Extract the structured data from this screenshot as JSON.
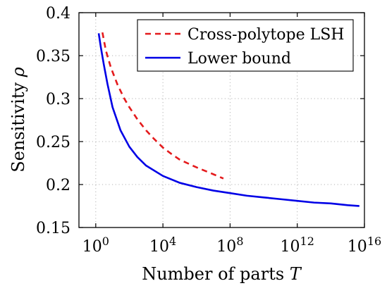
{
  "chart_data": {
    "type": "line",
    "title": "",
    "xlabel": "Number of parts T",
    "ylabel": "Sensitivity ρ",
    "x_scale": "log10",
    "xlim": [
      0.1,
      1e+16
    ],
    "ylim": [
      0.15,
      0.4
    ],
    "grid": true,
    "legend_position": "top-right",
    "x_ticks": [
      {
        "value": 1,
        "base": "10",
        "exp": "0"
      },
      {
        "value": 10000,
        "base": "10",
        "exp": "4"
      },
      {
        "value": 100000000,
        "base": "10",
        "exp": "8"
      },
      {
        "value": 1000000000000,
        "base": "10",
        "exp": "12"
      },
      {
        "value": 10000000000000000,
        "base": "10",
        "exp": "16"
      }
    ],
    "y_ticks": [
      {
        "value": 0.15,
        "label": "0.15"
      },
      {
        "value": 0.2,
        "label": "0.2"
      },
      {
        "value": 0.25,
        "label": "0.25"
      },
      {
        "value": 0.3,
        "label": "0.3"
      },
      {
        "value": 0.35,
        "label": "0.35"
      },
      {
        "value": 0.4,
        "label": "0.4"
      }
    ],
    "series": [
      {
        "name": "Cross-polytope LSH",
        "color": "#e41a1c",
        "style": "dashed",
        "x": [
          2.5,
          4,
          8,
          20,
          50,
          100,
          300,
          1000,
          3000,
          10000,
          30000,
          100000,
          1000000,
          10000000,
          40000000
        ],
        "y": [
          0.377,
          0.356,
          0.336,
          0.316,
          0.3,
          0.29,
          0.276,
          0.263,
          0.253,
          0.243,
          0.236,
          0.229,
          0.22,
          0.212,
          0.207
        ]
      },
      {
        "name": "Lower bound",
        "color": "#0000e6",
        "style": "solid",
        "x": [
          1.5,
          2,
          3,
          5,
          10,
          30,
          100,
          300,
          1000,
          10000,
          100000,
          1000000,
          10000000,
          100000000,
          1000000000,
          10000000000.0,
          100000000000.0,
          1000000000000.0,
          10000000000000.0,
          100000000000000.0,
          1000000000000000.0,
          5000000000000000.0
        ],
        "y": [
          0.376,
          0.36,
          0.34,
          0.317,
          0.29,
          0.263,
          0.244,
          0.232,
          0.222,
          0.21,
          0.202,
          0.197,
          0.193,
          0.19,
          0.187,
          0.185,
          0.183,
          0.181,
          0.179,
          0.178,
          0.176,
          0.175
        ]
      }
    ]
  }
}
